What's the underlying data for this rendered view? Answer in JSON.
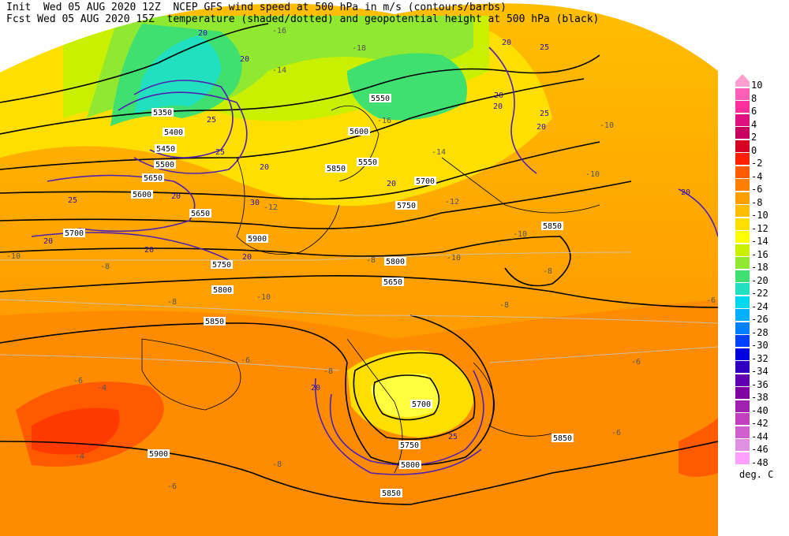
{
  "header": {
    "line1": "Init  Wed 05 AUG 2020 12Z  NCEP GFS wind speed at 500 hPa in m/s (contours/barbs)",
    "line2": "Fcst Wed 05 AUG 2020 15Z  temperature (shaded/dotted) and geopotential height at 500 hPa (black)"
  },
  "legend": {
    "units": "deg. C",
    "levels": [
      {
        "label": "10",
        "color": "#ff9fd0"
      },
      {
        "label": "8",
        "color": "#ff5fb4"
      },
      {
        "label": "6",
        "color": "#ff2f9c"
      },
      {
        "label": "4",
        "color": "#e0107f"
      },
      {
        "label": "2",
        "color": "#c80060"
      },
      {
        "label": "0",
        "color": "#d80020"
      },
      {
        "label": "-2",
        "color": "#ff2000"
      },
      {
        "label": "-4",
        "color": "#ff5a00"
      },
      {
        "label": "-6",
        "color": "#ff7f00"
      },
      {
        "label": "-8",
        "color": "#ff9f00"
      },
      {
        "label": "-10",
        "color": "#ffbf00"
      },
      {
        "label": "-12",
        "color": "#ffdf00"
      },
      {
        "label": "-14",
        "color": "#ffff00"
      },
      {
        "label": "-16",
        "color": "#c8f000"
      },
      {
        "label": "-18",
        "color": "#90e830"
      },
      {
        "label": "-20",
        "color": "#40e070"
      },
      {
        "label": "-22",
        "color": "#20e0c0"
      },
      {
        "label": "-24",
        "color": "#00d8f0"
      },
      {
        "label": "-26",
        "color": "#00b0ff"
      },
      {
        "label": "-28",
        "color": "#0080ff"
      },
      {
        "label": "-30",
        "color": "#0040ff"
      },
      {
        "label": "-32",
        "color": "#0000e0"
      },
      {
        "label": "-34",
        "color": "#3000c0"
      },
      {
        "label": "-36",
        "color": "#6000b0"
      },
      {
        "label": "-38",
        "color": "#8000a0"
      },
      {
        "label": "-40",
        "color": "#a020b0"
      },
      {
        "label": "-42",
        "color": "#c040c0"
      },
      {
        "label": "-44",
        "color": "#d060d0"
      },
      {
        "label": "-46",
        "color": "#e090e0"
      },
      {
        "label": "-48",
        "color": "#ffa0ff"
      }
    ]
  },
  "map_labels": {
    "height": [
      "5350",
      "5400",
      "5450",
      "5500",
      "5550",
      "5600",
      "5650",
      "5700",
      "5750",
      "5800",
      "5850",
      "5900",
      "5550",
      "5600",
      "5650",
      "5700",
      "5750",
      "5800",
      "5850",
      "5700",
      "5750",
      "5800",
      "5850",
      "5850",
      "5650",
      "5900",
      "5850"
    ],
    "temperature": [
      "-16",
      "-18",
      "-14",
      "-16",
      "-14",
      "-12",
      "-10",
      "-10",
      "-12",
      "-10",
      "-8",
      "-10",
      "-8",
      "-6",
      "-6",
      "-4",
      "-4",
      "-6",
      "-8",
      "-10",
      "-8",
      "-10",
      "-6",
      "-8",
      "-8",
      "-6",
      "-6",
      "-8"
    ],
    "wind": [
      "20",
      "20",
      "25",
      "20",
      "25",
      "20",
      "20",
      "20",
      "20",
      "25",
      "20",
      "25",
      "30",
      "20",
      "20",
      "25",
      "20",
      "20",
      "20",
      "25",
      "20"
    ]
  }
}
